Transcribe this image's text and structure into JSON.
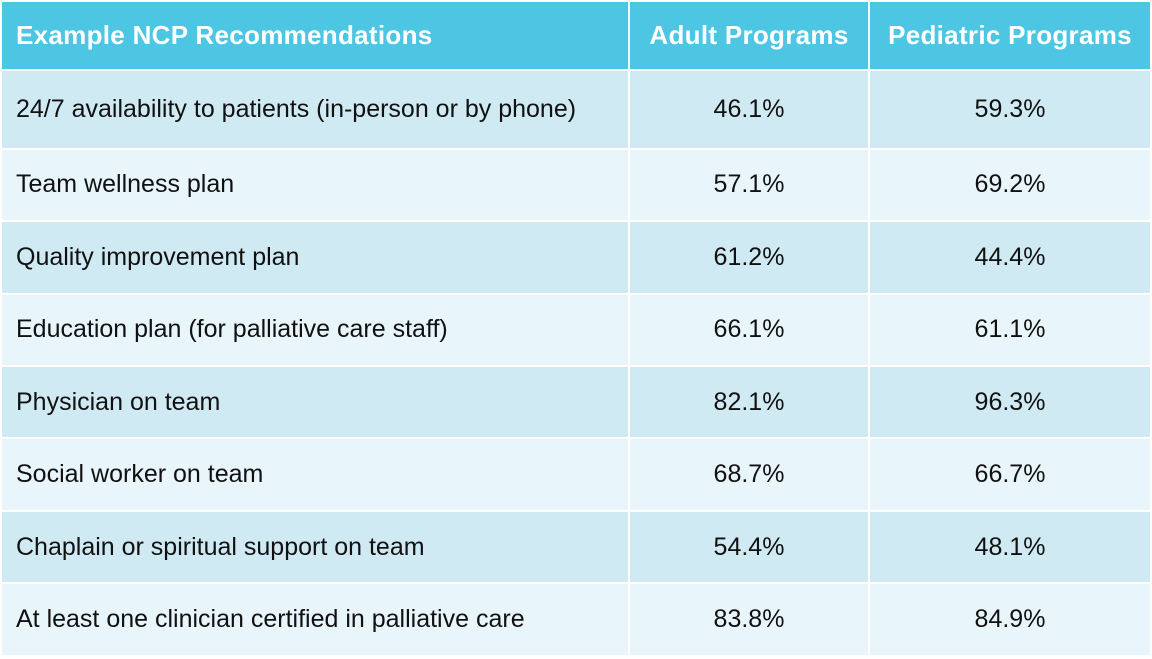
{
  "table": {
    "headers": [
      "Example NCP Recommendations",
      "Adult Programs",
      "Pediatric Programs"
    ],
    "rows": [
      {
        "recommendation": "24/7 availability to patients (in-person or by phone)",
        "adult": "46.1%",
        "pediatric": "59.3%"
      },
      {
        "recommendation": "Team wellness plan",
        "adult": "57.1%",
        "pediatric": "69.2%"
      },
      {
        "recommendation": "Quality improvement plan",
        "adult": "61.2%",
        "pediatric": "44.4%"
      },
      {
        "recommendation": "Education plan (for palliative care staff)",
        "adult": "66.1%",
        "pediatric": "61.1%"
      },
      {
        "recommendation": "Physician on team",
        "adult": "82.1%",
        "pediatric": "96.3%"
      },
      {
        "recommendation": "Social worker on team",
        "adult": "68.7%",
        "pediatric": "66.7%"
      },
      {
        "recommendation": "Chaplain or spiritual support on team",
        "adult": "54.4%",
        "pediatric": "48.1%"
      },
      {
        "recommendation": "At least one clinician certified in palliative care",
        "adult": "83.8%",
        "pediatric": "84.9%"
      }
    ]
  },
  "colors": {
    "header_bg": "#4dc6e4",
    "row_dark": "#d0eaf3",
    "row_light": "#e8f5fa"
  }
}
